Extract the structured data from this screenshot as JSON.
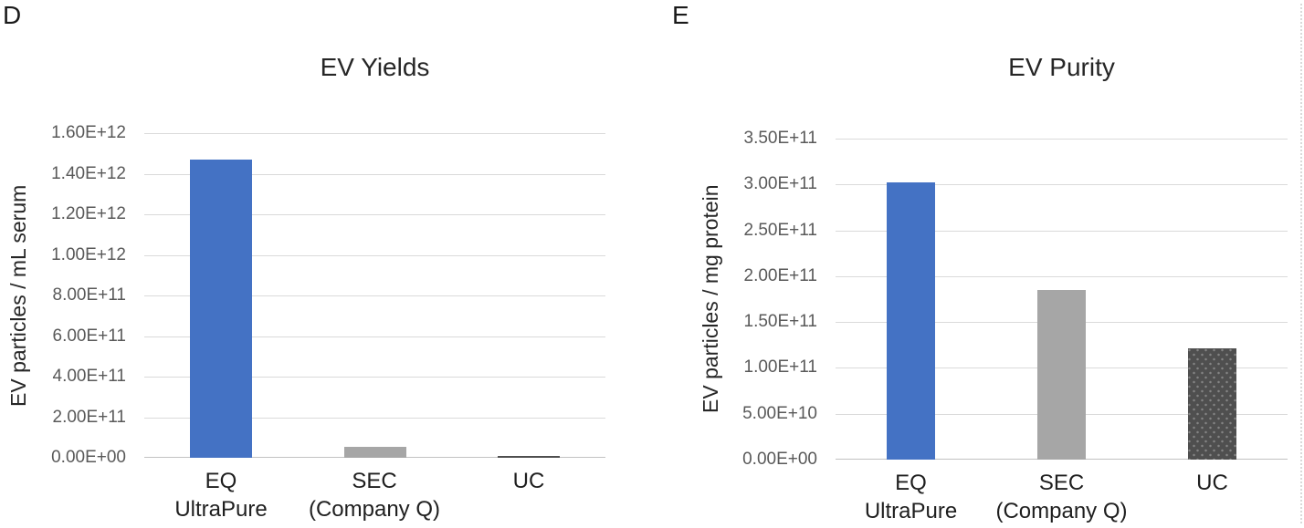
{
  "panels": [
    {
      "corner_label": "D"
    },
    {
      "corner_label": "E"
    }
  ],
  "colors": {
    "bar_blue": "#4472C4",
    "bar_light_gray": "#A6A6A6",
    "bar_dark_gray": "#4F4F4F",
    "gridline": "#DADADA",
    "axis_line": "#C2C2C2",
    "tick_text": "#595959",
    "label_text": "#1F1F1F"
  },
  "chart_data": [
    {
      "type": "bar",
      "panel": "D",
      "title": "EV Yields",
      "xlabel": "",
      "ylabel": "EV particles / mL serum",
      "categories": [
        "EQ UltraPure",
        "SEC (Company Q)",
        "UC"
      ],
      "category_lines": [
        [
          "EQ",
          "UltraPure"
        ],
        [
          "SEC",
          "(Company Q)"
        ],
        [
          "UC"
        ]
      ],
      "values": [
        1470000000000.0,
        55000000000.0,
        10000000000.0
      ],
      "bar_colors": [
        "#4472C4",
        "#A6A6A6",
        "#4F4F4F"
      ],
      "bar_patterns": [
        null,
        null,
        null
      ],
      "ylim": [
        0,
        1600000000000.0
      ],
      "ytick_labels": [
        "0.00E+00",
        "2.00E+11",
        "4.00E+11",
        "6.00E+11",
        "8.00E+11",
        "1.00E+12",
        "1.20E+12",
        "1.40E+12",
        "1.60E+12"
      ],
      "grid": true,
      "legend": false
    },
    {
      "type": "bar",
      "panel": "E",
      "title": "EV Purity",
      "xlabel": "",
      "ylabel": "EV particles / mg protein",
      "categories": [
        "EQ UltraPure",
        "SEC (Company Q)",
        "UC"
      ],
      "category_lines": [
        [
          "EQ",
          "UltraPure"
        ],
        [
          "SEC",
          "(Company Q)"
        ],
        [
          "UC"
        ]
      ],
      "values": [
        302000000000.0,
        185000000000.0,
        121000000000.0
      ],
      "bar_colors": [
        "#4472C4",
        "#A6A6A6",
        "#4F4F4F"
      ],
      "bar_patterns": [
        null,
        null,
        "dots"
      ],
      "ylim": [
        0,
        350000000000.0
      ],
      "ytick_labels": [
        "0.00E+00",
        "5.00E+10",
        "1.00E+11",
        "1.50E+11",
        "2.00E+11",
        "2.50E+11",
        "3.00E+11",
        "3.50E+11"
      ],
      "grid": true,
      "legend": false
    }
  ]
}
